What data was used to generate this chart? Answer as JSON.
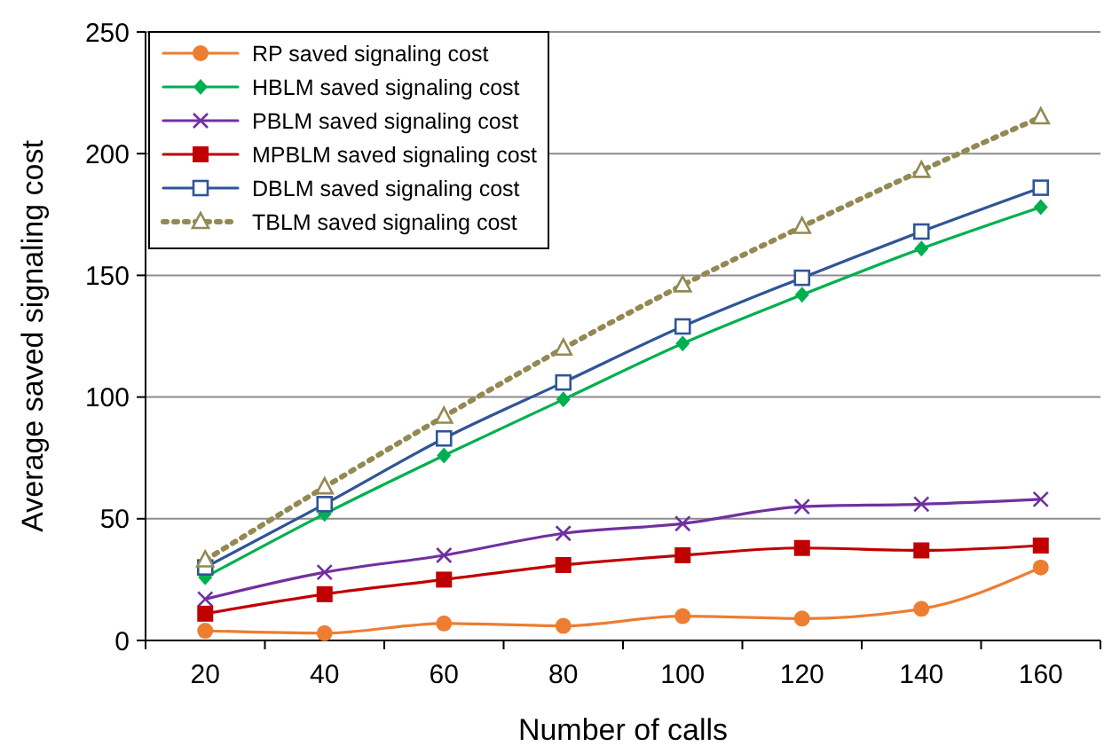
{
  "chart_data": {
    "type": "line",
    "xlabel": "Number of calls",
    "ylabel": "Average saved signaling cost",
    "categories": [
      "20",
      "40",
      "60",
      "80",
      "100",
      "120",
      "140",
      "160"
    ],
    "ylim": [
      0,
      250
    ],
    "yticks": [
      0,
      50,
      100,
      150,
      200,
      250
    ],
    "grid": "y",
    "legend": "top left",
    "series": [
      {
        "name": "RP saved signaling cost",
        "color": "#ed7d31",
        "marker": "circle",
        "values": [
          4,
          3,
          7,
          6,
          10,
          9,
          13,
          30
        ]
      },
      {
        "name": "HBLM saved signaling cost",
        "color": "#00b050",
        "marker": "diamond",
        "values": [
          26,
          52,
          76,
          99,
          122,
          142,
          161,
          178
        ]
      },
      {
        "name": "PBLM saved signaling cost",
        "color": "#7030a0",
        "marker": "cross",
        "values": [
          17,
          28,
          35,
          44,
          48,
          55,
          56,
          58
        ]
      },
      {
        "name": "MPBLM saved signaling cost",
        "color": "#c00000",
        "marker": "square",
        "values": [
          11,
          19,
          25,
          31,
          35,
          38,
          37,
          39
        ]
      },
      {
        "name": "DBLM saved signaling cost",
        "color": "#2f5597",
        "marker": "square-open",
        "values": [
          30,
          56,
          83,
          106,
          129,
          149,
          168,
          186
        ]
      },
      {
        "name": "TBLM saved signaling cost",
        "color": "#938953",
        "marker": "triangle",
        "line_style": "dotted",
        "values": [
          33,
          63,
          92,
          120,
          146,
          170,
          193,
          215
        ]
      }
    ]
  }
}
